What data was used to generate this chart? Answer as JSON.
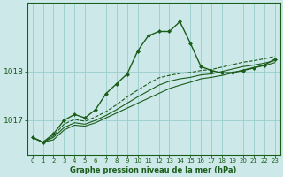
{
  "background_color": "#cce8e8",
  "grid_color": "#99cccc",
  "line_color": "#1a5c1a",
  "text_color": "#1a5c1a",
  "xlabel": "Graphe pression niveau de la mer (hPa)",
  "hours": [
    0,
    1,
    2,
    3,
    4,
    5,
    6,
    7,
    8,
    9,
    10,
    11,
    12,
    13,
    14,
    15,
    16,
    17,
    18,
    19,
    20,
    21,
    22,
    23
  ],
  "series": [
    [
      1016.65,
      1016.55,
      1016.6,
      1016.8,
      1016.9,
      1016.88,
      1016.95,
      1017.05,
      1017.15,
      1017.25,
      1017.35,
      1017.45,
      1017.55,
      1017.65,
      1017.72,
      1017.78,
      1017.85,
      1017.88,
      1017.92,
      1017.97,
      1018.03,
      1018.08,
      1018.12,
      1018.18
    ],
    [
      1016.65,
      1016.55,
      1016.65,
      1016.85,
      1016.95,
      1016.92,
      1017.0,
      1017.1,
      1017.22,
      1017.35,
      1017.48,
      1017.6,
      1017.72,
      1017.8,
      1017.85,
      1017.88,
      1017.93,
      1017.95,
      1018.0,
      1018.05,
      1018.1,
      1018.13,
      1018.17,
      1018.22
    ],
    [
      1016.65,
      1016.55,
      1016.68,
      1016.92,
      1017.02,
      1016.98,
      1017.07,
      1017.18,
      1017.32,
      1017.48,
      1017.62,
      1017.75,
      1017.87,
      1017.92,
      1017.96,
      1017.98,
      1018.02,
      1018.04,
      1018.09,
      1018.14,
      1018.19,
      1018.22,
      1018.26,
      1018.31
    ],
    [
      1016.65,
      1016.55,
      1016.72,
      1017.0,
      1017.12,
      1017.05,
      1017.22,
      1017.55,
      1017.75,
      1017.95,
      1018.42,
      1018.73,
      1018.82,
      1018.82,
      1019.02,
      1018.58,
      1018.1,
      1018.02,
      1017.97,
      1017.98,
      1018.02,
      1018.07,
      1018.13,
      1018.25
    ]
  ],
  "series_styles": [
    {
      "linestyle": "-",
      "linewidth": 0.8,
      "marker": null,
      "dashed": false
    },
    {
      "linestyle": "-",
      "linewidth": 0.8,
      "marker": null,
      "dashed": false
    },
    {
      "linestyle": "--",
      "linewidth": 0.8,
      "marker": null,
      "dashed": true
    },
    {
      "linestyle": "-",
      "linewidth": 1.0,
      "marker": "D",
      "markersize": 2.0,
      "dashed": false
    }
  ],
  "ylim": [
    1016.3,
    1019.4
  ],
  "yticks": [
    1017.0,
    1018.0
  ],
  "xlim": [
    -0.5,
    23.5
  ],
  "xticks": [
    0,
    1,
    2,
    3,
    4,
    5,
    6,
    7,
    8,
    9,
    10,
    11,
    12,
    13,
    14,
    15,
    16,
    17,
    18,
    19,
    20,
    21,
    22,
    23
  ],
  "figsize": [
    3.2,
    2.0
  ],
  "dpi": 100
}
